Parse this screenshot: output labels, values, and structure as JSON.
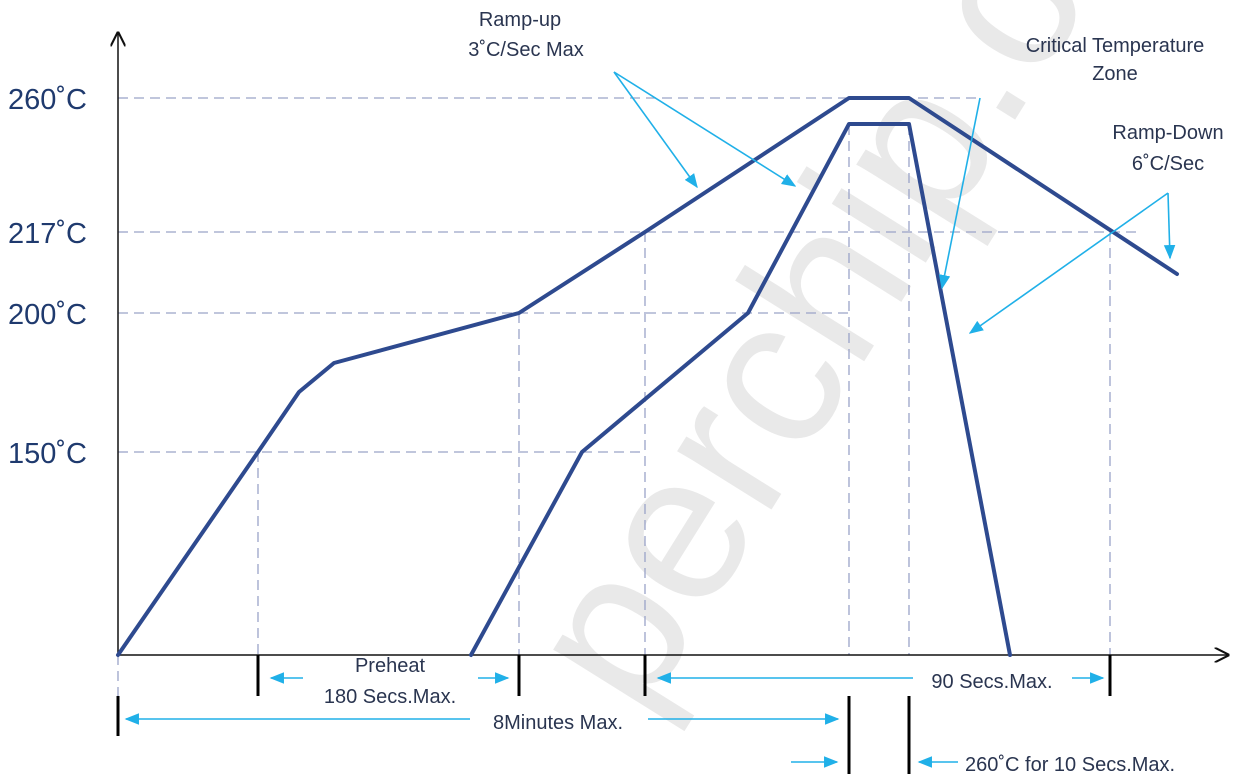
{
  "diagram": {
    "y_labels": {
      "t260": "260˚C",
      "t217": "217˚C",
      "t200": "200˚C",
      "t150": "150˚C"
    },
    "annotations": {
      "ramp_up_line1": "Ramp-up",
      "ramp_up_line2": "3˚C/Sec Max",
      "critical_line1": "Critical Temperature",
      "critical_line2": "Zone",
      "ramp_down_line1": "Ramp-Down",
      "ramp_down_line2": "6˚C/Sec",
      "preheat_line1": "Preheat",
      "preheat_line2": "180 Secs.Max.",
      "secs90": "90 Secs.Max.",
      "minutes8": "8Minutes Max.",
      "peak_hold": "260˚C for 10 Secs.Max."
    },
    "watermark": "perchip.cn",
    "colors": {
      "profile": "#2e4a8f",
      "arrow": "#20b0e8",
      "guide": "#9aa3c8"
    }
  }
}
